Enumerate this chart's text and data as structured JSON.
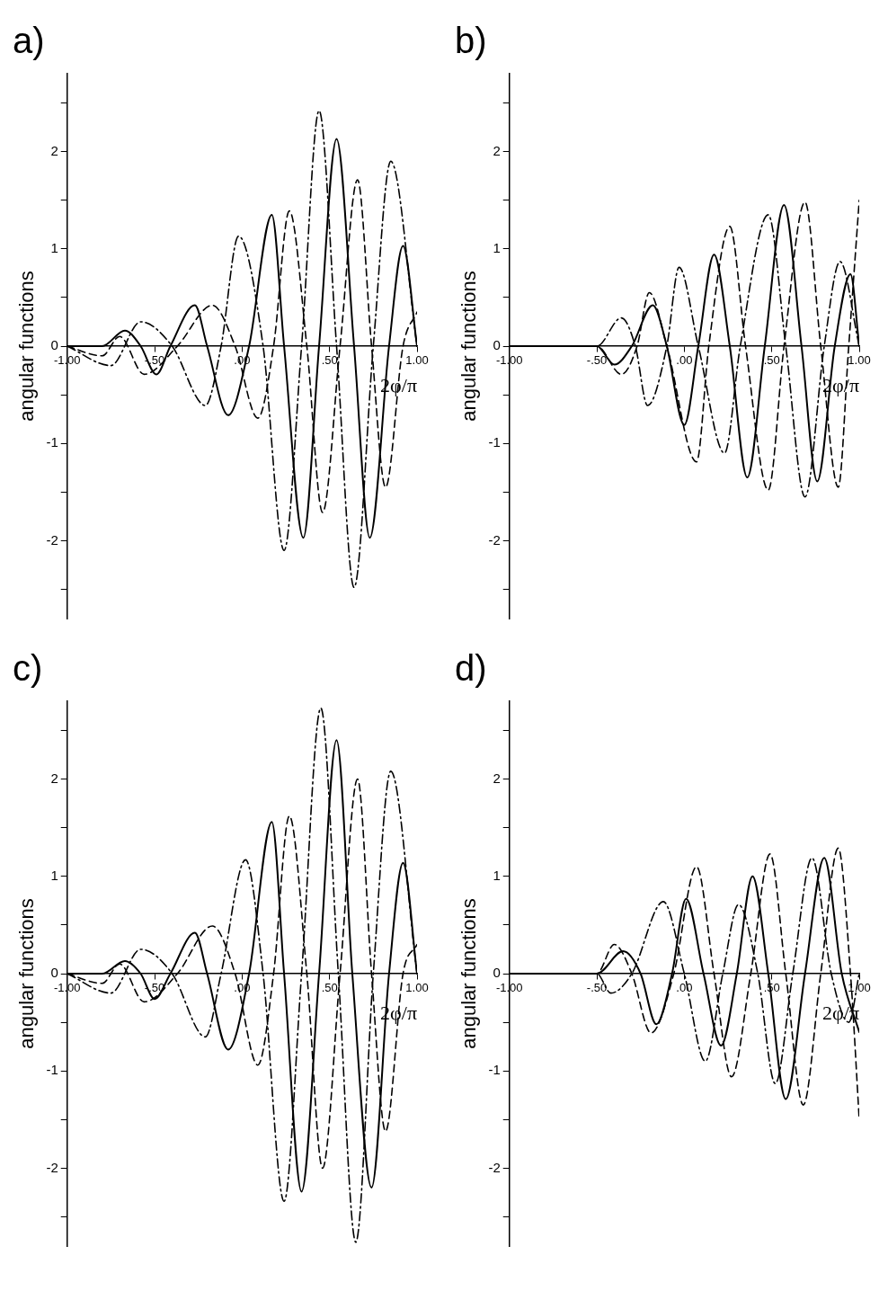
{
  "chart_data": [
    {
      "type": "line",
      "title": "a)",
      "xlabel": "2φ/π",
      "ylabel": "angular functions",
      "xlim": [
        -1,
        1
      ],
      "ylim": [
        -2.8,
        2.8
      ],
      "xticks": [
        {
          "value": -1,
          "label": "-1.00"
        },
        {
          "value": -0.5,
          "label": "-.50"
        },
        {
          "value": 0,
          "label": ".00"
        },
        {
          "value": 0.5,
          "label": ".50"
        },
        {
          "value": 1,
          "label": "1.00"
        }
      ],
      "yticks": [
        {
          "value": -2.5,
          "label": null
        },
        -2,
        {
          "value": -1.5,
          "label": null
        },
        -1,
        {
          "value": -0.5,
          "label": null
        },
        0,
        {
          "value": 0.5,
          "label": null
        },
        1,
        {
          "value": 1.5,
          "label": null
        },
        2,
        {
          "value": 2.5,
          "label": null
        }
      ],
      "grid": false,
      "legend": false,
      "marker": "none",
      "series": [
        {
          "type": "line",
          "color": "#000000",
          "line_style": "solid",
          "x": [
            -1,
            -0.8,
            -0.67,
            -0.58,
            -0.49,
            -0.41,
            -0.27,
            -0.2,
            -0.08,
            0.04,
            0.17,
            0.24,
            0.35,
            0.44,
            0.54,
            0.64,
            0.73,
            0.84,
            0.92,
            1
          ],
          "values": [
            0,
            0,
            0.16,
            0,
            -0.29,
            0,
            0.42,
            0,
            -0.71,
            0,
            1.35,
            0,
            -1.97,
            0,
            2.13,
            0,
            -1.97,
            0,
            1.03,
            0
          ]
        },
        {
          "type": "line",
          "color": "#000000",
          "line_style": "dashed",
          "x": [
            -1,
            -0.8,
            -0.7,
            -0.56,
            -0.37,
            -0.17,
            -0.04,
            0.09,
            0.18,
            0.27,
            0.37,
            0.46,
            0.56,
            0.66,
            0.74,
            0.82,
            0.92,
            1
          ],
          "values": [
            0,
            -0.1,
            0.1,
            -0.29,
            0,
            0.42,
            0,
            -0.74,
            0,
            1.39,
            0,
            -1.71,
            0,
            1.71,
            0,
            -1.45,
            0,
            0.35
          ]
        },
        {
          "type": "line",
          "color": "#000000",
          "line_style": "dashdot",
          "x": [
            -1,
            -0.75,
            -0.58,
            -0.4,
            -0.21,
            -0.12,
            -0.02,
            0.12,
            0.24,
            0.34,
            0.44,
            0.54,
            0.64,
            0.75,
            0.85,
            1
          ],
          "values": [
            0,
            -0.2,
            0.25,
            0,
            -0.61,
            0,
            1.13,
            0,
            -2.1,
            0,
            2.42,
            0,
            -2.48,
            0,
            1.9,
            0
          ]
        }
      ]
    },
    {
      "type": "line",
      "title": "b)",
      "xlabel": "2φ/π",
      "ylabel": "angular functions",
      "xlim": [
        -1,
        1
      ],
      "ylim": [
        -2.8,
        2.8
      ],
      "xticks": [
        {
          "value": -1,
          "label": "-1.00"
        },
        {
          "value": -0.5,
          "label": "-.50"
        },
        {
          "value": 0,
          "label": ".00"
        },
        {
          "value": 0.5,
          "label": ".50"
        },
        {
          "value": 1,
          "label": "1.00"
        }
      ],
      "yticks": [
        {
          "value": -2.5,
          "label": null
        },
        -2,
        {
          "value": -1.5,
          "label": null
        },
        -1,
        {
          "value": -0.5,
          "label": null
        },
        0,
        {
          "value": 0.5,
          "label": null
        },
        1,
        {
          "value": 1.5,
          "label": null
        },
        2,
        {
          "value": 2.5,
          "label": null
        }
      ],
      "grid": false,
      "legend": false,
      "marker": "none",
      "series": [
        {
          "type": "line",
          "color": "#000000",
          "line_style": "solid",
          "x": [
            -1,
            -0.5,
            -0.4,
            -0.3,
            -0.18,
            -0.1,
            0,
            0.08,
            0.17,
            0.26,
            0.36,
            0.46,
            0.57,
            0.67,
            0.76,
            0.86,
            0.95,
            1
          ],
          "values": [
            0,
            0,
            -0.19,
            0,
            0.42,
            0,
            -0.81,
            0,
            0.94,
            0,
            -1.35,
            0,
            1.45,
            0,
            -1.39,
            0,
            0.74,
            0
          ]
        },
        {
          "type": "line",
          "color": "#000000",
          "line_style": "dashed",
          "x": [
            -1,
            -0.5,
            -0.36,
            -0.27,
            -0.2,
            -0.1,
            0.07,
            0.14,
            0.26,
            0.35,
            0.48,
            0.57,
            0.69,
            0.78,
            0.88,
            0.94,
            1
          ],
          "values": [
            0,
            0,
            -0.29,
            0,
            0.55,
            0,
            -1.19,
            0,
            1.23,
            0,
            -1.48,
            0,
            1.48,
            0,
            -1.45,
            0,
            1.5
          ]
        },
        {
          "type": "line",
          "color": "#000000",
          "line_style": "dashdot",
          "x": [
            -1,
            -0.5,
            -0.36,
            -0.28,
            -0.21,
            -0.1,
            -0.03,
            0.08,
            0.23,
            0.32,
            0.48,
            0.58,
            0.69,
            0.8,
            0.89,
            1
          ],
          "values": [
            0,
            0,
            0.29,
            0,
            -0.61,
            0,
            0.81,
            0,
            -1.1,
            0,
            1.35,
            0,
            -1.55,
            0,
            0.87,
            0
          ]
        }
      ]
    },
    {
      "type": "line",
      "title": "c)",
      "xlabel": "2φ/π",
      "ylabel": "angular functions",
      "xlim": [
        -1,
        1
      ],
      "ylim": [
        -2.8,
        2.8
      ],
      "xticks": [
        {
          "value": -1,
          "label": "-1.00"
        },
        {
          "value": -0.5,
          "label": "-.50"
        },
        {
          "value": 0,
          "label": ".00"
        },
        {
          "value": 0.5,
          "label": ".50"
        },
        {
          "value": 1,
          "label": "1.00"
        }
      ],
      "yticks": [
        {
          "value": -2.5,
          "label": null
        },
        -2,
        {
          "value": -1.5,
          "label": null
        },
        -1,
        {
          "value": -0.5,
          "label": null
        },
        0,
        {
          "value": 0.5,
          "label": null
        },
        1,
        {
          "value": 1.5,
          "label": null
        },
        2,
        {
          "value": 2.5,
          "label": null
        }
      ],
      "grid": false,
      "legend": false,
      "marker": "none",
      "series": [
        {
          "type": "line",
          "color": "#000000",
          "line_style": "solid",
          "x": [
            -1,
            -0.8,
            -0.67,
            -0.58,
            -0.5,
            -0.41,
            -0.27,
            -0.2,
            -0.08,
            0.04,
            0.17,
            0.24,
            0.34,
            0.44,
            0.54,
            0.63,
            0.74,
            0.84,
            0.92,
            1
          ],
          "values": [
            0,
            0,
            0.13,
            0,
            -0.26,
            0,
            0.42,
            0,
            -0.78,
            0,
            1.56,
            0,
            -2.24,
            0,
            2.4,
            0,
            -2.2,
            0,
            1.14,
            0
          ]
        },
        {
          "type": "line",
          "color": "#000000",
          "line_style": "dashed",
          "x": [
            -1,
            -0.8,
            -0.7,
            -0.56,
            -0.37,
            -0.17,
            -0.04,
            0.09,
            0.18,
            0.27,
            0.37,
            0.46,
            0.56,
            0.66,
            0.74,
            0.82,
            0.92,
            1
          ],
          "values": [
            0,
            -0.1,
            0.1,
            -0.29,
            0,
            0.49,
            0,
            -0.94,
            0,
            1.62,
            0,
            -2,
            0,
            2,
            0,
            -1.62,
            0,
            0.3
          ]
        },
        {
          "type": "line",
          "color": "#000000",
          "line_style": "dashdot",
          "x": [
            -1,
            -0.75,
            -0.58,
            -0.4,
            -0.21,
            -0.12,
            0.02,
            0.12,
            0.24,
            0.34,
            0.45,
            0.55,
            0.65,
            0.75,
            0.85,
            1
          ],
          "values": [
            0,
            -0.2,
            0.25,
            0,
            -0.65,
            0,
            1.17,
            0,
            -2.34,
            0,
            2.73,
            0,
            -2.76,
            0,
            2.08,
            0
          ]
        }
      ]
    },
    {
      "type": "line",
      "title": "d)",
      "xlabel": "2φ/π",
      "ylabel": "angular functions",
      "xlim": [
        -1,
        1
      ],
      "ylim": [
        -2.8,
        2.8
      ],
      "xticks": [
        {
          "value": -1,
          "label": "-1.00"
        },
        {
          "value": -0.5,
          "label": "-.50"
        },
        {
          "value": 0,
          "label": ".00"
        },
        {
          "value": 0.5,
          "label": ".50"
        },
        {
          "value": 1,
          "label": "1.00"
        }
      ],
      "yticks": [
        {
          "value": -2.5,
          "label": null
        },
        -2,
        {
          "value": -1.5,
          "label": null
        },
        -1,
        {
          "value": -0.5,
          "label": null
        },
        0,
        {
          "value": 0.5,
          "label": null
        },
        1,
        {
          "value": 1.5,
          "label": null
        },
        2,
        {
          "value": 2.5,
          "label": null
        }
      ],
      "grid": false,
      "legend": false,
      "marker": "none",
      "series": [
        {
          "type": "line",
          "color": "#000000",
          "line_style": "solid",
          "x": [
            -1,
            -0.5,
            -0.35,
            -0.25,
            -0.16,
            -0.07,
            0.01,
            0.11,
            0.21,
            0.3,
            0.39,
            0.48,
            0.58,
            0.69,
            0.8,
            0.9,
            1
          ],
          "values": [
            0,
            0,
            0.23,
            0,
            -0.52,
            0,
            0.77,
            0,
            -0.74,
            0,
            1,
            0,
            -1.29,
            0,
            1.19,
            0,
            -0.6
          ]
        },
        {
          "type": "line",
          "color": "#000000",
          "line_style": "dashed",
          "x": [
            -1,
            -0.5,
            -0.4,
            -0.3,
            -0.19,
            -0.06,
            0.07,
            0.17,
            0.27,
            0.38,
            0.49,
            0.58,
            0.68,
            0.78,
            0.88,
            0.95,
            1
          ],
          "values": [
            0,
            0,
            0.3,
            0,
            -0.61,
            0,
            1.1,
            0,
            -1.06,
            0,
            1.23,
            0,
            -1.35,
            0,
            1.29,
            0,
            -1.5
          ]
        },
        {
          "type": "line",
          "color": "#000000",
          "line_style": "dashdot",
          "x": [
            -1,
            -0.5,
            -0.42,
            -0.3,
            -0.12,
            0,
            0.12,
            0.22,
            0.31,
            0.42,
            0.52,
            0.62,
            0.73,
            0.84,
            0.94,
            1
          ],
          "values": [
            0,
            0,
            -0.2,
            0,
            0.74,
            0,
            -0.9,
            0,
            0.71,
            0,
            -1.13,
            0,
            1.19,
            0,
            -0.5,
            0
          ]
        }
      ]
    }
  ]
}
